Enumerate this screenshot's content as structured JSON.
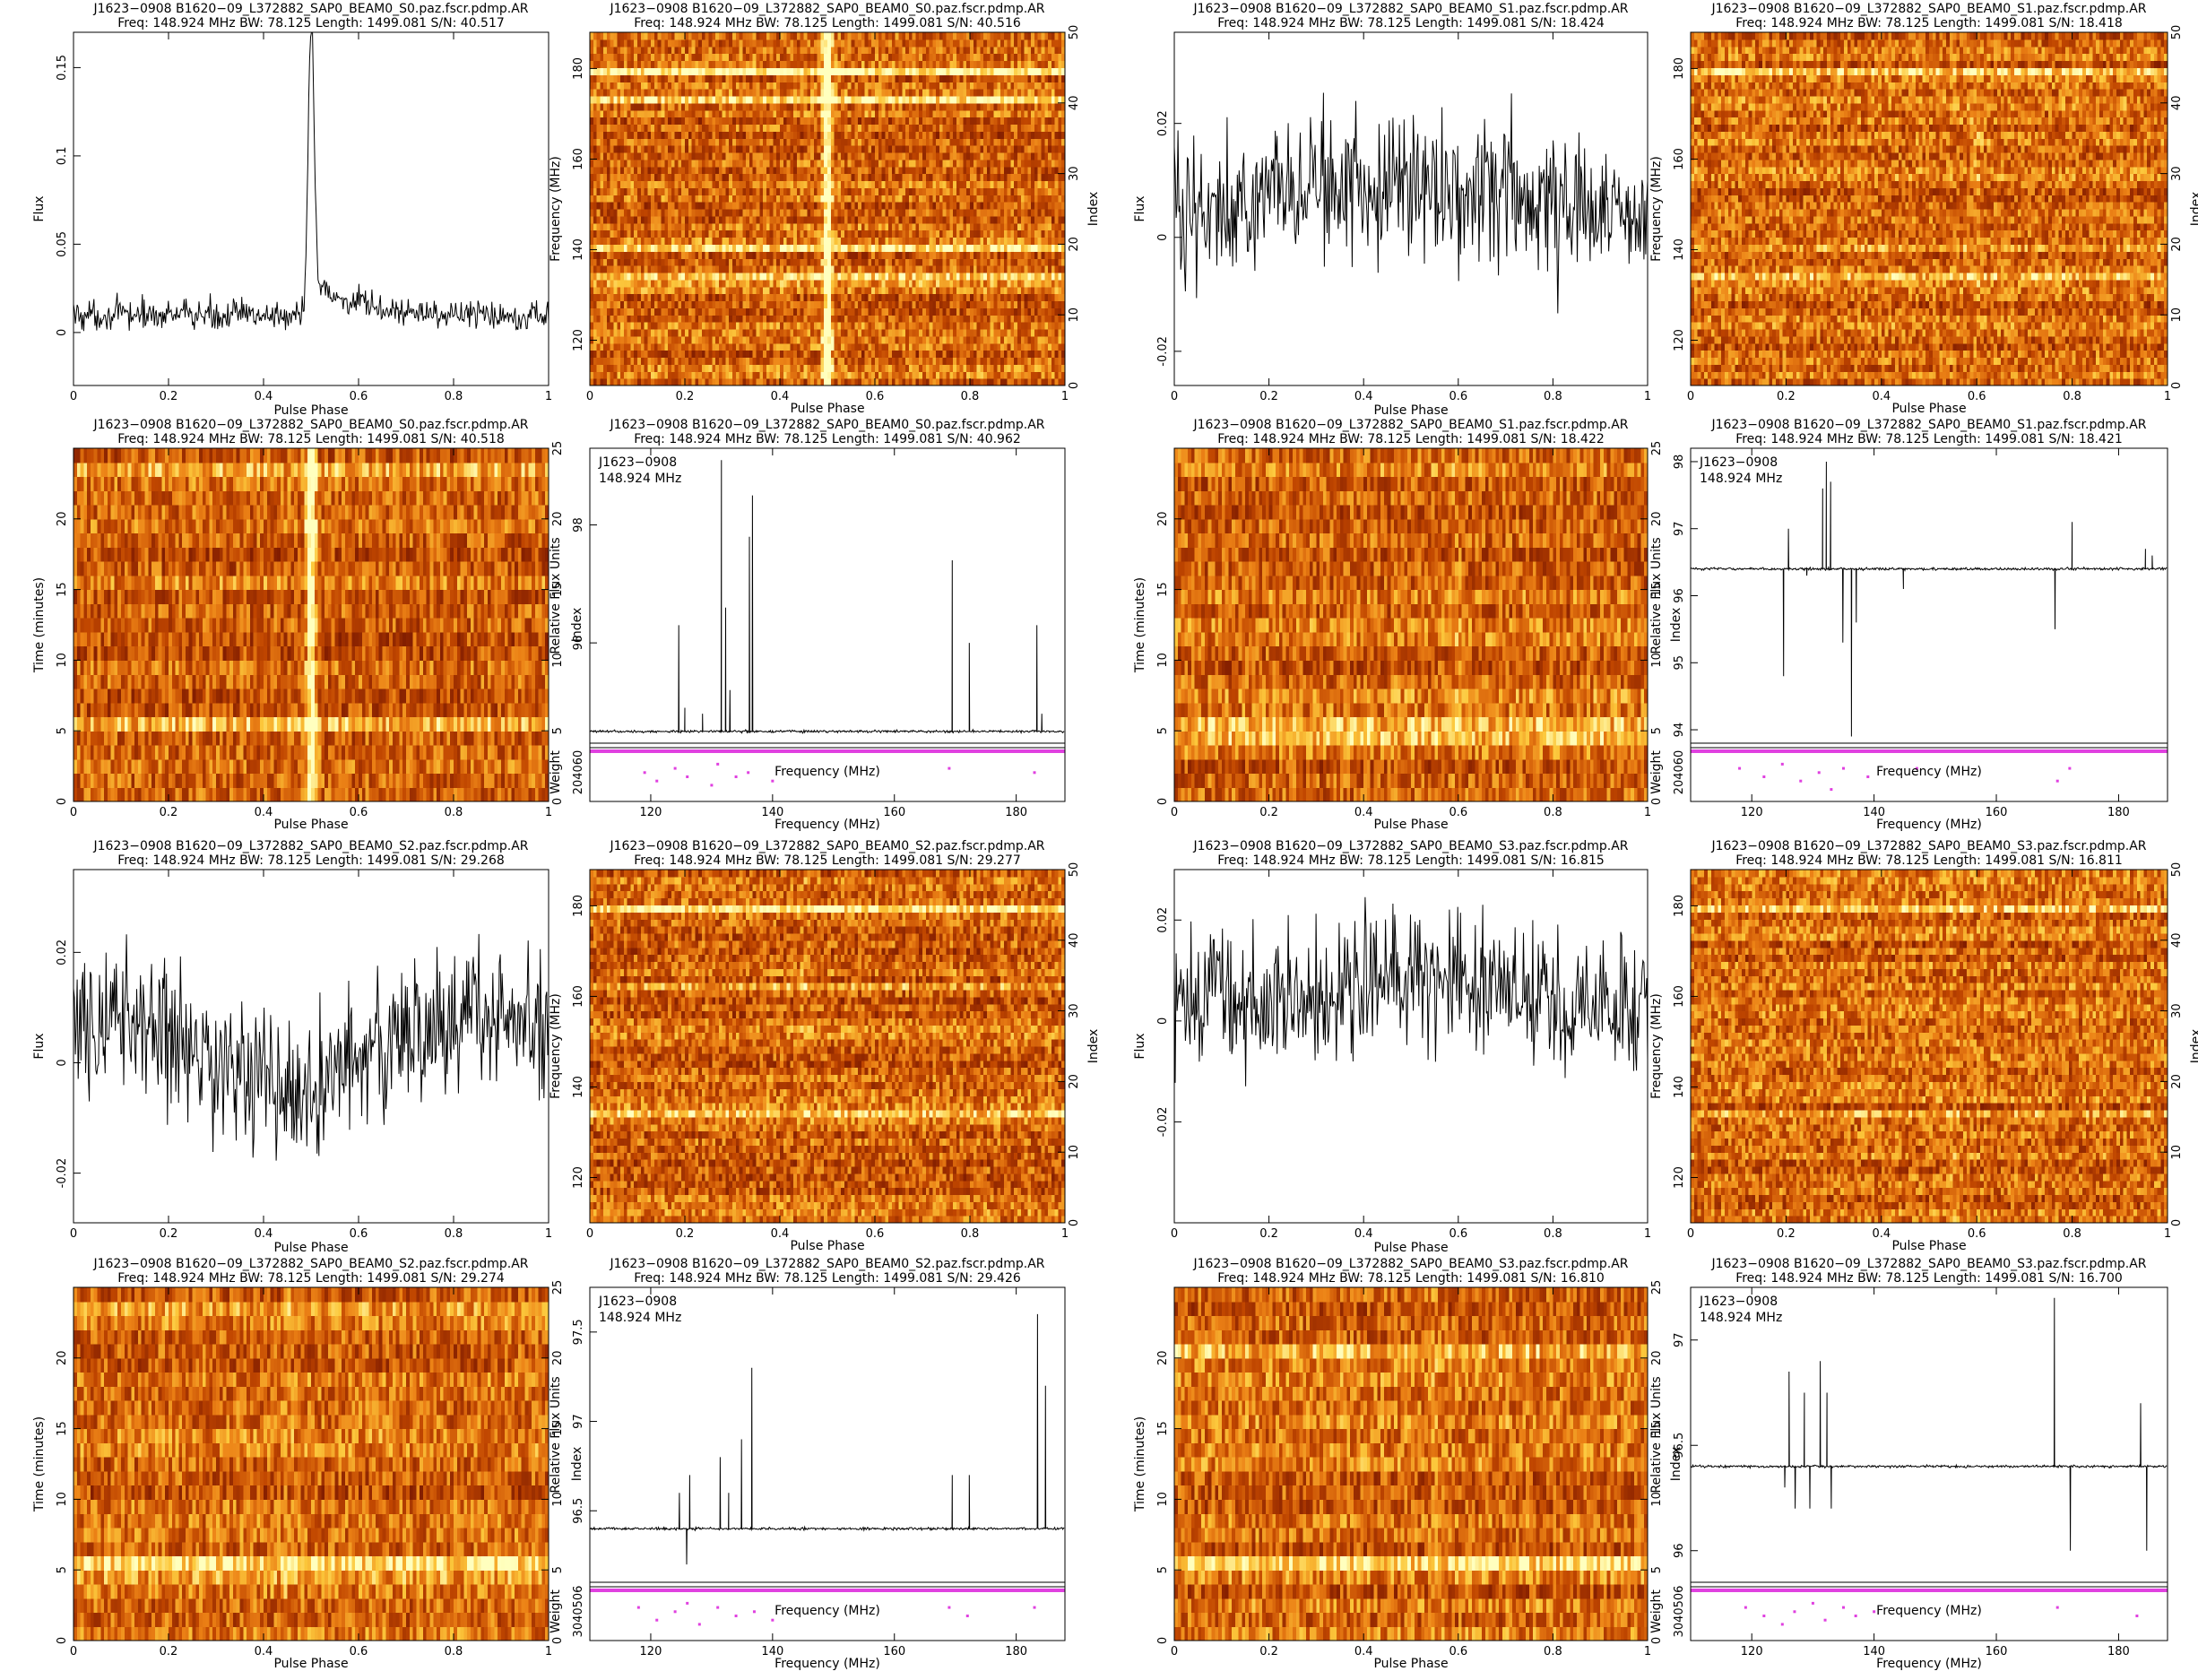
{
  "chart_data": [
    {
      "type": "line",
      "title": "J1623−0908  B1620−09_L372882_SAP0_BEAM0_S0.paz.fscr.pdmp.AR",
      "subtitle": "Freq: 148.924 MHz  BW: 78.125  Length: 1499.081  S/N: 40.517",
      "xlabel": "Pulse Phase",
      "ylabel": "Flux",
      "xlim": [
        0,
        1
      ],
      "ylim": [
        -0.03,
        0.17
      ],
      "xticks": [
        0,
        0.2,
        0.4,
        0.6,
        0.8,
        1
      ],
      "yticks": [
        0,
        0.05,
        0.1,
        0.15
      ],
      "profile": {
        "baseline": 0.01,
        "noise": 0.006,
        "peak_phase": 0.5,
        "peak_height": 0.16,
        "tail": 0.02,
        "drift": 0
      }
    },
    {
      "type": "heatmap",
      "title": "J1623−0908  B1620−09_L372882_SAP0_BEAM0_S0.paz.fscr.pdmp.AR",
      "subtitle": "Freq: 148.924 MHz  BW: 78.125  Length: 1499.081  S/N: 40.516",
      "xlabel": "Pulse Phase",
      "ylabel": "Frequency (MHz)",
      "y2label": "Index",
      "xlim": [
        0,
        1
      ],
      "ylim": [
        110,
        188
      ],
      "y2lim": [
        0,
        50
      ],
      "xticks": [
        0,
        0.2,
        0.4,
        0.6,
        0.8,
        1
      ],
      "yticks": [
        120,
        140,
        160,
        180
      ],
      "y2ticks": [
        0,
        10,
        20,
        30,
        40,
        50
      ],
      "rows": 50,
      "pulse_phase": 0.5,
      "pulse_strength": 0.9,
      "bright_rows": [
        {
          "row": 44,
          "level": 0.95
        },
        {
          "row": 40,
          "level": 1.0
        },
        {
          "row": 19,
          "level": 0.7
        },
        {
          "row": 15,
          "level": 0.8
        },
        {
          "row": 14,
          "level": 0.5
        }
      ]
    },
    {
      "type": "line",
      "title": "J1623−0908  B1620−09_L372882_SAP0_BEAM0_S1.paz.fscr.pdmp.AR",
      "subtitle": "Freq: 148.924 MHz  BW: 78.125  Length: 1499.081  S/N: 18.424",
      "xlabel": "Pulse Phase",
      "ylabel": "Flux",
      "xlim": [
        0,
        1
      ],
      "ylim": [
        -0.026,
        0.036
      ],
      "xticks": [
        0,
        0.2,
        0.4,
        0.6,
        0.8,
        1
      ],
      "yticks": [
        -0.02,
        0,
        0.02
      ],
      "profile": {
        "baseline": 0.005,
        "noise": 0.009,
        "peak_phase": 0.65,
        "peak_height": 0.006,
        "tail": 0,
        "drift": 0.003
      }
    },
    {
      "type": "heatmap",
      "title": "J1623−0908  B1620−09_L372882_SAP0_BEAM0_S1.paz.fscr.pdmp.AR",
      "subtitle": "Freq: 148.924 MHz  BW: 78.125  Length: 1499.081  S/N: 18.418",
      "xlabel": "Pulse Phase",
      "ylabel": "Frequency (MHz)",
      "y2label": "Index",
      "xlim": [
        0,
        1
      ],
      "ylim": [
        110,
        188
      ],
      "y2lim": [
        0,
        50
      ],
      "xticks": [
        0,
        0.2,
        0.4,
        0.6,
        0.8,
        1
      ],
      "yticks": [
        120,
        140,
        160,
        180
      ],
      "y2ticks": [
        0,
        10,
        20,
        30,
        40,
        50
      ],
      "rows": 50,
      "pulse_phase": 0.6,
      "pulse_strength": 0.15,
      "bright_rows": [
        {
          "row": 44,
          "level": 0.9
        },
        {
          "row": 15,
          "level": 0.5
        },
        {
          "row": 19,
          "level": 0.4
        }
      ]
    },
    {
      "type": "heatmap",
      "title": "J1623−0908  B1620−09_L372882_SAP0_BEAM0_S0.paz.fscr.pdmp.AR",
      "subtitle": "Freq: 148.924 MHz  BW: 78.125  Length: 1499.081  S/N: 40.518",
      "xlabel": "Pulse Phase",
      "ylabel": "Time (minutes)",
      "y2label": "Index",
      "xlim": [
        0,
        1
      ],
      "ylim": [
        0,
        25
      ],
      "y2lim": [
        0,
        25
      ],
      "xticks": [
        0,
        0.2,
        0.4,
        0.6,
        0.8,
        1
      ],
      "yticks": [
        0,
        5,
        10,
        15,
        20
      ],
      "y2ticks": [
        0,
        5,
        10,
        15,
        20,
        25
      ],
      "rows": 25,
      "pulse_phase": 0.5,
      "pulse_strength": 0.9,
      "bright_rows": [
        {
          "row": 23,
          "level": 0.5
        },
        {
          "row": 5,
          "level": 0.4
        }
      ]
    },
    {
      "type": "line",
      "title": "J1623−0908  B1620−09_L372882_SAP0_BEAM0_S0.paz.fscr.pdmp.AR",
      "subtitle": "Freq: 148.924 MHz  BW: 78.125  Length: 1499.081  S/N: 40.962",
      "xlabel": "Frequency (MHz)",
      "ylabel": "Relative Flux Units",
      "y2label": "Weight",
      "xlim": [
        110,
        188
      ],
      "ylim": [
        94.3,
        99.3
      ],
      "xticks": [
        120,
        140,
        160,
        180
      ],
      "yticks": [
        96,
        98
      ],
      "wticks": "204060",
      "annotation": [
        "J1623−0908",
        "148.924 MHz"
      ],
      "baseline": 94.5,
      "spikes": [
        {
          "x": 124.6,
          "y": 96.3
        },
        {
          "x": 125.6,
          "y": 94.9
        },
        {
          "x": 128.5,
          "y": 94.8
        },
        {
          "x": 131.6,
          "y": 99.1
        },
        {
          "x": 132.3,
          "y": 96.6
        },
        {
          "x": 133.0,
          "y": 95.2
        },
        {
          "x": 136.2,
          "y": 97.8
        },
        {
          "x": 136.7,
          "y": 98.5
        },
        {
          "x": 169.5,
          "y": 97.4
        },
        {
          "x": 172.3,
          "y": 96.0
        },
        {
          "x": 183.4,
          "y": 96.3
        },
        {
          "x": 184.2,
          "y": 94.8
        }
      ],
      "weight_outliers": [
        [
          119,
          0.4
        ],
        [
          121,
          0.6
        ],
        [
          124,
          0.3
        ],
        [
          126,
          0.5
        ],
        [
          130,
          0.7
        ],
        [
          131,
          0.2
        ],
        [
          134,
          0.5
        ],
        [
          136,
          0.4
        ],
        [
          140,
          0.6
        ],
        [
          169,
          0.3
        ],
        [
          183,
          0.4
        ]
      ]
    },
    {
      "type": "heatmap",
      "title": "J1623−0908  B1620−09_L372882_SAP0_BEAM0_S1.paz.fscr.pdmp.AR",
      "subtitle": "Freq: 148.924 MHz  BW: 78.125  Length: 1499.081  S/N: 18.422",
      "xlabel": "Pulse Phase",
      "ylabel": "Time (minutes)",
      "y2label": "Index",
      "xlim": [
        0,
        1
      ],
      "ylim": [
        0,
        25
      ],
      "y2lim": [
        0,
        25
      ],
      "xticks": [
        0,
        0.2,
        0.4,
        0.6,
        0.8,
        1
      ],
      "yticks": [
        0,
        5,
        10,
        15,
        20
      ],
      "y2ticks": [
        0,
        5,
        10,
        15,
        20,
        25
      ],
      "rows": 25,
      "pulse_phase": 0.6,
      "pulse_strength": 0.15,
      "bright_rows": [
        {
          "row": 5,
          "level": 0.7
        },
        {
          "row": 4,
          "level": 0.4
        }
      ]
    },
    {
      "type": "line",
      "title": "J1623−0908  B1620−09_L372882_SAP0_BEAM0_S1.paz.fscr.pdmp.AR",
      "subtitle": "Freq: 148.924 MHz  BW: 78.125  Length: 1499.081  S/N: 18.421",
      "xlabel": "Frequency (MHz)",
      "ylabel": "Relative Flux Units",
      "y2label": "Weight",
      "xlim": [
        110,
        188
      ],
      "ylim": [
        93.8,
        98.2
      ],
      "xticks": [
        120,
        140,
        160,
        180
      ],
      "yticks": [
        94,
        95,
        96,
        97,
        98
      ],
      "wticks": "204060",
      "annotation": [
        "J1623−0908",
        "148.924 MHz"
      ],
      "baseline": 96.4,
      "spikes": [
        {
          "x": 125.2,
          "y": 94.8
        },
        {
          "x": 126.0,
          "y": 97.0
        },
        {
          "x": 129.0,
          "y": 96.3
        },
        {
          "x": 131.6,
          "y": 97.6
        },
        {
          "x": 132.2,
          "y": 98.0
        },
        {
          "x": 132.9,
          "y": 97.7
        },
        {
          "x": 134.9,
          "y": 95.3
        },
        {
          "x": 136.3,
          "y": 93.9
        },
        {
          "x": 137.1,
          "y": 95.6
        },
        {
          "x": 144.8,
          "y": 96.1
        },
        {
          "x": 169.6,
          "y": 95.5
        },
        {
          "x": 172.4,
          "y": 97.1
        },
        {
          "x": 184.4,
          "y": 96.7
        },
        {
          "x": 185.5,
          "y": 96.6
        }
      ],
      "weight_outliers": [
        [
          118,
          0.3
        ],
        [
          122,
          0.5
        ],
        [
          125,
          0.2
        ],
        [
          128,
          0.6
        ],
        [
          131,
          0.4
        ],
        [
          133,
          0.8
        ],
        [
          135,
          0.3
        ],
        [
          139,
          0.5
        ],
        [
          147,
          0.3
        ],
        [
          170,
          0.6
        ],
        [
          172,
          0.3
        ]
      ]
    },
    {
      "type": "line",
      "title": "J1623−0908  B1620−09_L372882_SAP0_BEAM0_S2.paz.fscr.pdmp.AR",
      "subtitle": "Freq: 148.924 MHz  BW: 78.125  Length: 1499.081  S/N: 29.268",
      "xlabel": "Pulse Phase",
      "ylabel": "Flux",
      "xlim": [
        0,
        1
      ],
      "ylim": [
        -0.029,
        0.035
      ],
      "xticks": [
        0,
        0.2,
        0.4,
        0.6,
        0.8,
        1
      ],
      "yticks": [
        -0.02,
        0,
        0.02
      ],
      "profile": {
        "baseline": 0.008,
        "noise": 0.009,
        "peak_phase": 0.45,
        "peak_height": -0.012,
        "tail": 0,
        "drift": 0
      }
    },
    {
      "type": "heatmap",
      "title": "J1623−0908  B1620−09_L372882_SAP0_BEAM0_S2.paz.fscr.pdmp.AR",
      "subtitle": "Freq: 148.924 MHz  BW: 78.125  Length: 1499.081  S/N: 29.277",
      "xlabel": "Pulse Phase",
      "ylabel": "Frequency (MHz)",
      "y2label": "Index",
      "xlim": [
        0,
        1
      ],
      "ylim": [
        110,
        188
      ],
      "y2lim": [
        0,
        50
      ],
      "xticks": [
        0,
        0.2,
        0.4,
        0.6,
        0.8,
        1
      ],
      "yticks": [
        120,
        140,
        160,
        180
      ],
      "y2ticks": [
        0,
        10,
        20,
        30,
        40,
        50
      ],
      "rows": 50,
      "pulse_phase": 0.45,
      "pulse_strength": 0.1,
      "bright_rows": [
        {
          "row": 44,
          "level": 1.0
        },
        {
          "row": 15,
          "level": 0.5
        },
        {
          "row": 33,
          "level": 0.3
        }
      ]
    },
    {
      "type": "line",
      "title": "J1623−0908  B1620−09_L372882_SAP0_BEAM0_S3.paz.fscr.pdmp.AR",
      "subtitle": "Freq: 148.924 MHz  BW: 78.125  Length: 1499.081  S/N: 16.815",
      "xlabel": "Pulse Phase",
      "ylabel": "Flux",
      "xlim": [
        0,
        1
      ],
      "ylim": [
        -0.04,
        0.03
      ],
      "xticks": [
        0,
        0.2,
        0.4,
        0.6,
        0.8,
        1
      ],
      "yticks": [
        -0.02,
        0,
        0.02
      ],
      "profile": {
        "baseline": 0.003,
        "noise": 0.009,
        "peak_phase": 0.55,
        "peak_height": 0.006,
        "tail": 0,
        "drift": 0
      }
    },
    {
      "type": "heatmap",
      "title": "J1623−0908  B1620−09_L372882_SAP0_BEAM0_S3.paz.fscr.pdmp.AR",
      "subtitle": "Freq: 148.924 MHz  BW: 78.125  Length: 1499.081  S/N: 16.811",
      "xlabel": "Pulse Phase",
      "ylabel": "Frequency (MHz)",
      "y2label": "Index",
      "xlim": [
        0,
        1
      ],
      "ylim": [
        110,
        188
      ],
      "y2lim": [
        0,
        50
      ],
      "xticks": [
        0,
        0.2,
        0.4,
        0.6,
        0.8,
        1
      ],
      "yticks": [
        120,
        140,
        160,
        180
      ],
      "y2ticks": [
        0,
        10,
        20,
        30,
        40,
        50
      ],
      "rows": 50,
      "pulse_phase": 0.55,
      "pulse_strength": 0.1,
      "bright_rows": [
        {
          "row": 44,
          "level": 0.6
        },
        {
          "row": 15,
          "level": 0.5
        },
        {
          "row": 30,
          "level": 0.3
        }
      ]
    },
    {
      "type": "heatmap",
      "title": "J1623−0908  B1620−09_L372882_SAP0_BEAM0_S2.paz.fscr.pdmp.AR",
      "subtitle": "Freq: 148.924 MHz  BW: 78.125  Length: 1499.081  S/N: 29.274",
      "xlabel": "Pulse Phase",
      "ylabel": "Time (minutes)",
      "y2label": "Index",
      "xlim": [
        0,
        1
      ],
      "ylim": [
        0,
        25
      ],
      "y2lim": [
        0,
        25
      ],
      "xticks": [
        0,
        0.2,
        0.4,
        0.6,
        0.8,
        1
      ],
      "yticks": [
        0,
        5,
        10,
        15,
        20
      ],
      "y2ticks": [
        0,
        5,
        10,
        15,
        20,
        25
      ],
      "rows": 25,
      "pulse_phase": 0.45,
      "pulse_strength": 0.1,
      "bright_rows": [
        {
          "row": 5,
          "level": 0.9
        },
        {
          "row": 4,
          "level": 0.4
        },
        {
          "row": 23,
          "level": 0.3
        }
      ]
    },
    {
      "type": "line",
      "title": "J1623−0908  B1620−09_L372882_SAP0_BEAM0_S2.paz.fscr.pdmp.AR",
      "subtitle": "Freq: 148.924 MHz  BW: 78.125  Length: 1499.081  S/N: 29.426",
      "xlabel": "Frequency (MHz)",
      "ylabel": "Relative Flux Units",
      "y2label": "Weight",
      "xlim": [
        110,
        188
      ],
      "ylim": [
        96.1,
        97.75
      ],
      "xticks": [
        120,
        140,
        160,
        180
      ],
      "yticks": [
        96.5,
        97,
        97.5
      ],
      "wticks": "3040506",
      "annotation": [
        "J1623−0908",
        "148.924 MHz"
      ],
      "baseline": 96.4,
      "spikes": [
        {
          "x": 124.7,
          "y": 96.6
        },
        {
          "x": 125.9,
          "y": 96.2
        },
        {
          "x": 126.4,
          "y": 96.7
        },
        {
          "x": 131.4,
          "y": 96.8
        },
        {
          "x": 132.8,
          "y": 96.6
        },
        {
          "x": 134.9,
          "y": 96.9
        },
        {
          "x": 136.6,
          "y": 97.3
        },
        {
          "x": 169.5,
          "y": 96.7
        },
        {
          "x": 172.3,
          "y": 96.7
        },
        {
          "x": 183.5,
          "y": 97.6
        },
        {
          "x": 184.8,
          "y": 97.2
        }
      ],
      "weight_outliers": [
        [
          118,
          0.3
        ],
        [
          121,
          0.6
        ],
        [
          124,
          0.4
        ],
        [
          126,
          0.2
        ],
        [
          128,
          0.7
        ],
        [
          131,
          0.3
        ],
        [
          134,
          0.5
        ],
        [
          137,
          0.4
        ],
        [
          140,
          0.6
        ],
        [
          169,
          0.3
        ],
        [
          172,
          0.5
        ],
        [
          183,
          0.3
        ]
      ]
    },
    {
      "type": "heatmap",
      "title": "J1623−0908  B1620−09_L372882_SAP0_BEAM0_S3.paz.fscr.pdmp.AR",
      "subtitle": "Freq: 148.924 MHz  BW: 78.125  Length: 1499.081  S/N: 16.810",
      "xlabel": "Pulse Phase",
      "ylabel": "Time (minutes)",
      "y2label": "Index",
      "xlim": [
        0,
        1
      ],
      "ylim": [
        0,
        25
      ],
      "y2lim": [
        0,
        25
      ],
      "xticks": [
        0,
        0.2,
        0.4,
        0.6,
        0.8,
        1
      ],
      "yticks": [
        0,
        5,
        10,
        15,
        20
      ],
      "y2ticks": [
        0,
        5,
        10,
        15,
        20,
        25
      ],
      "rows": 25,
      "pulse_phase": 0.55,
      "pulse_strength": 0.1,
      "bright_rows": [
        {
          "row": 5,
          "level": 0.7
        },
        {
          "row": 20,
          "level": 0.3
        }
      ]
    },
    {
      "type": "line",
      "title": "J1623−0908  B1620−09_L372882_SAP0_BEAM0_S3.paz.fscr.pdmp.AR",
      "subtitle": "Freq: 148.924 MHz  BW: 78.125  Length: 1499.081  S/N: 16.700",
      "xlabel": "Frequency (MHz)",
      "ylabel": "Relative Flux Units",
      "y2label": "Weight",
      "xlim": [
        110,
        188
      ],
      "ylim": [
        95.85,
        97.25
      ],
      "xticks": [
        120,
        140,
        160,
        180
      ],
      "yticks": [
        96,
        96.5,
        97
      ],
      "wticks": "3040506",
      "annotation": [
        "J1623−0908",
        "148.924 MHz"
      ],
      "baseline": 96.4,
      "spikes": [
        {
          "x": 125.4,
          "y": 96.3
        },
        {
          "x": 126.1,
          "y": 96.85
        },
        {
          "x": 127.1,
          "y": 96.2
        },
        {
          "x": 128.6,
          "y": 96.75
        },
        {
          "x": 129.5,
          "y": 96.2
        },
        {
          "x": 131.2,
          "y": 96.9
        },
        {
          "x": 132.3,
          "y": 96.75
        },
        {
          "x": 133.0,
          "y": 96.2
        },
        {
          "x": 169.5,
          "y": 97.2
        },
        {
          "x": 172.1,
          "y": 96.0
        },
        {
          "x": 183.6,
          "y": 96.7
        },
        {
          "x": 184.6,
          "y": 96.0
        }
      ],
      "weight_outliers": [
        [
          119,
          0.3
        ],
        [
          122,
          0.5
        ],
        [
          125,
          0.7
        ],
        [
          127,
          0.4
        ],
        [
          130,
          0.2
        ],
        [
          132,
          0.6
        ],
        [
          135,
          0.3
        ],
        [
          137,
          0.5
        ],
        [
          140,
          0.4
        ],
        [
          170,
          0.3
        ],
        [
          183,
          0.5
        ]
      ]
    }
  ]
}
